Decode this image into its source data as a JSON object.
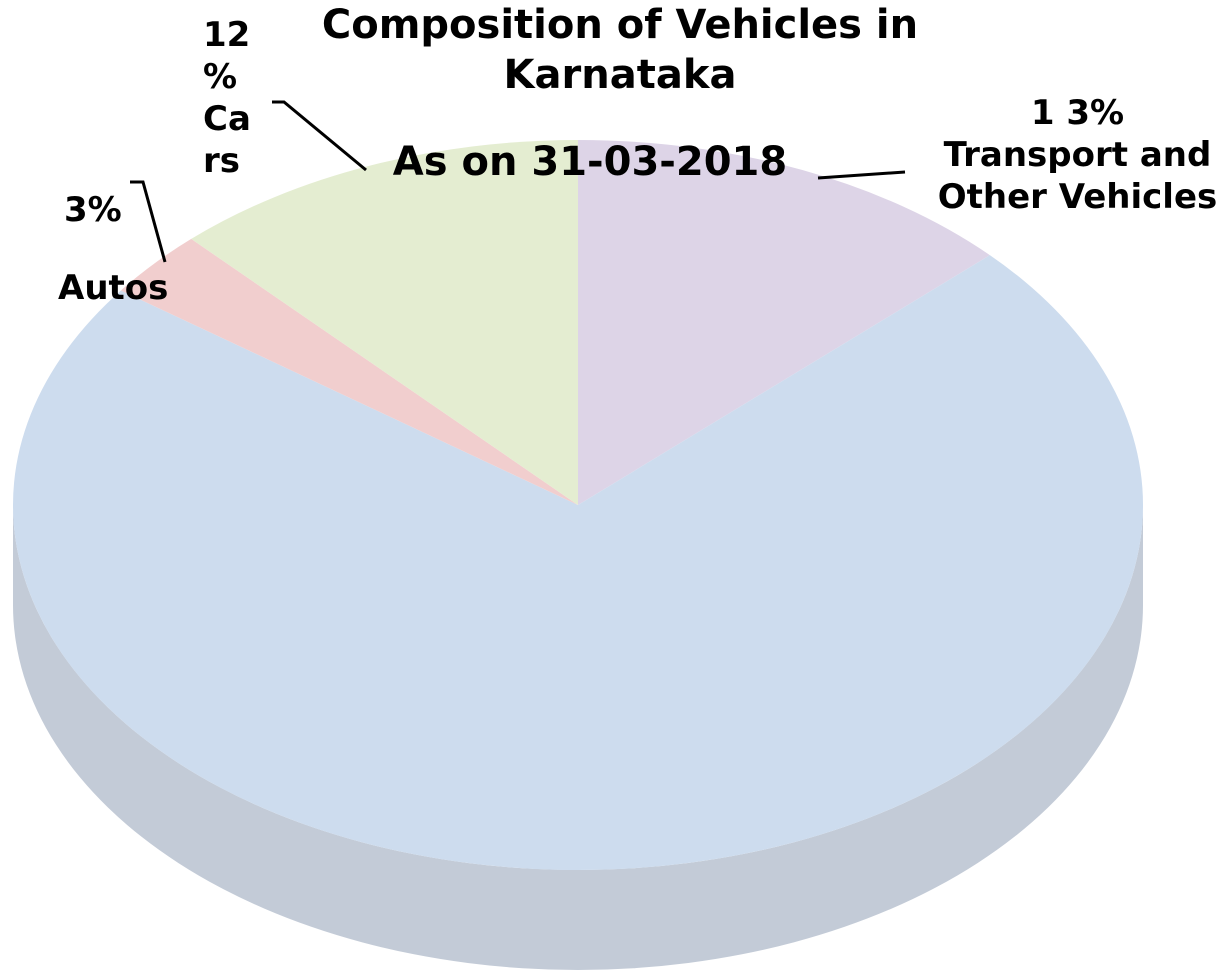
{
  "chart_data": {
    "type": "pie",
    "title": "Composition of Vehicles in Karnataka",
    "subtitle": "As on 31-03-2018",
    "categories": [
      "Transport and Other Vehicles",
      null,
      "Autos",
      "Cars"
    ],
    "values": [
      13,
      72,
      3,
      12
    ],
    "value_labels": [
      "1 3%",
      null,
      "3%",
      "12 %"
    ],
    "colors": [
      "#ddd4e7",
      "#cddcee",
      "#f1cece",
      "#e4edd1"
    ]
  }
}
